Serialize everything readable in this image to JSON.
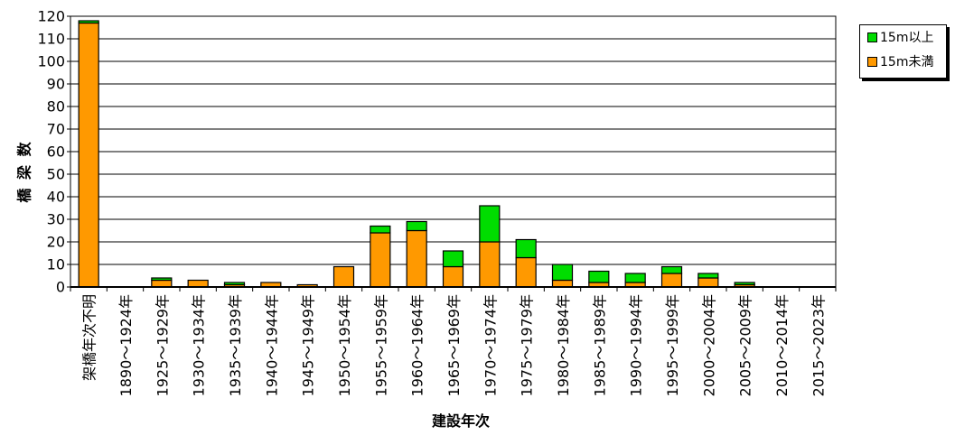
{
  "chart_data": {
    "type": "bar",
    "stacked": true,
    "title": "",
    "xlabel": "建設年次",
    "ylabel": "橋 梁 数",
    "ylim": [
      0,
      120
    ],
    "y_ticks": [
      0,
      10,
      20,
      30,
      40,
      50,
      60,
      70,
      80,
      90,
      100,
      110,
      120
    ],
    "grid": true,
    "legend_position": "top-right",
    "categories": [
      "架橋年次不明",
      "1890～1924年",
      "1925～1929年",
      "1930～1934年",
      "1935～1939年",
      "1940～1944年",
      "1945～1949年",
      "1950～1954年",
      "1955～1959年",
      "1960～1964年",
      "1965～1969年",
      "1970～1974年",
      "1975～1979年",
      "1980～1984年",
      "1985～1989年",
      "1990～1994年",
      "1995～1999年",
      "2000～2004年",
      "2005～2009年",
      "2010～2014年",
      "2015～2023年"
    ],
    "series": [
      {
        "name": "15m未満",
        "color": "#ff9900",
        "values": [
          117,
          0,
          3,
          3,
          1,
          2,
          1,
          9,
          24,
          25,
          9,
          20,
          13,
          3,
          2,
          2,
          6,
          4,
          1,
          0,
          0
        ]
      },
      {
        "name": "15m以上",
        "color": "#00dd00",
        "values": [
          1,
          0,
          1,
          0,
          1,
          0,
          0,
          0,
          3,
          4,
          7,
          16,
          8,
          7,
          5,
          4,
          3,
          2,
          1,
          0,
          0
        ]
      }
    ],
    "legend_order": [
      "15m以上",
      "15m未満"
    ]
  }
}
